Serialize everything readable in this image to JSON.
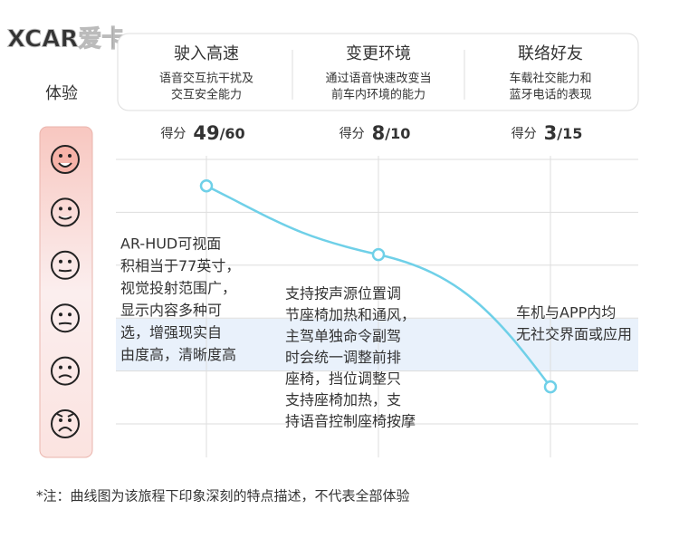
{
  "logo": "XCAR爱卡",
  "chart_data": {
    "type": "line",
    "y_label": "体验",
    "categories": [
      "驶入高速",
      "变更环境",
      "联络好友"
    ],
    "descriptions": [
      [
        "语音交互抗干扰及",
        "交互安全能力"
      ],
      [
        "通过语音快速改变当",
        "前车内环境的能力"
      ],
      [
        "车载社交能力和",
        "蓝牙电话的表现"
      ]
    ],
    "score_label": "得分",
    "scores": [
      49,
      8,
      3
    ],
    "score_totals": [
      "/60",
      "/10",
      "/15"
    ],
    "values": [
      5.5,
      4.2,
      1.7
    ],
    "color": "#6fd0e8",
    "ylim": [
      1,
      6
    ],
    "yticks": [
      1,
      2,
      3,
      4,
      5,
      6
    ],
    "annotations": [
      [
        "AR-HUD可视面",
        "积相当于77英寸，",
        "视觉投射范围广，",
        "显示内容多种可",
        "选，增强现实自",
        "由度高，清晰度高"
      ],
      [
        "支持按声源位置调",
        "节座椅加热和通风，",
        "主驾单独命令副驾",
        "时会统一调整前排",
        "座椅，挡位调整只",
        "支持座椅加热，支",
        "持语音控制座椅按摩"
      ],
      [
        "车机与APP内均",
        "无社交界面或应用"
      ]
    ],
    "note": "*注：曲线图为该旅程下印象深刻的特点描述，不代表全部体验"
  }
}
